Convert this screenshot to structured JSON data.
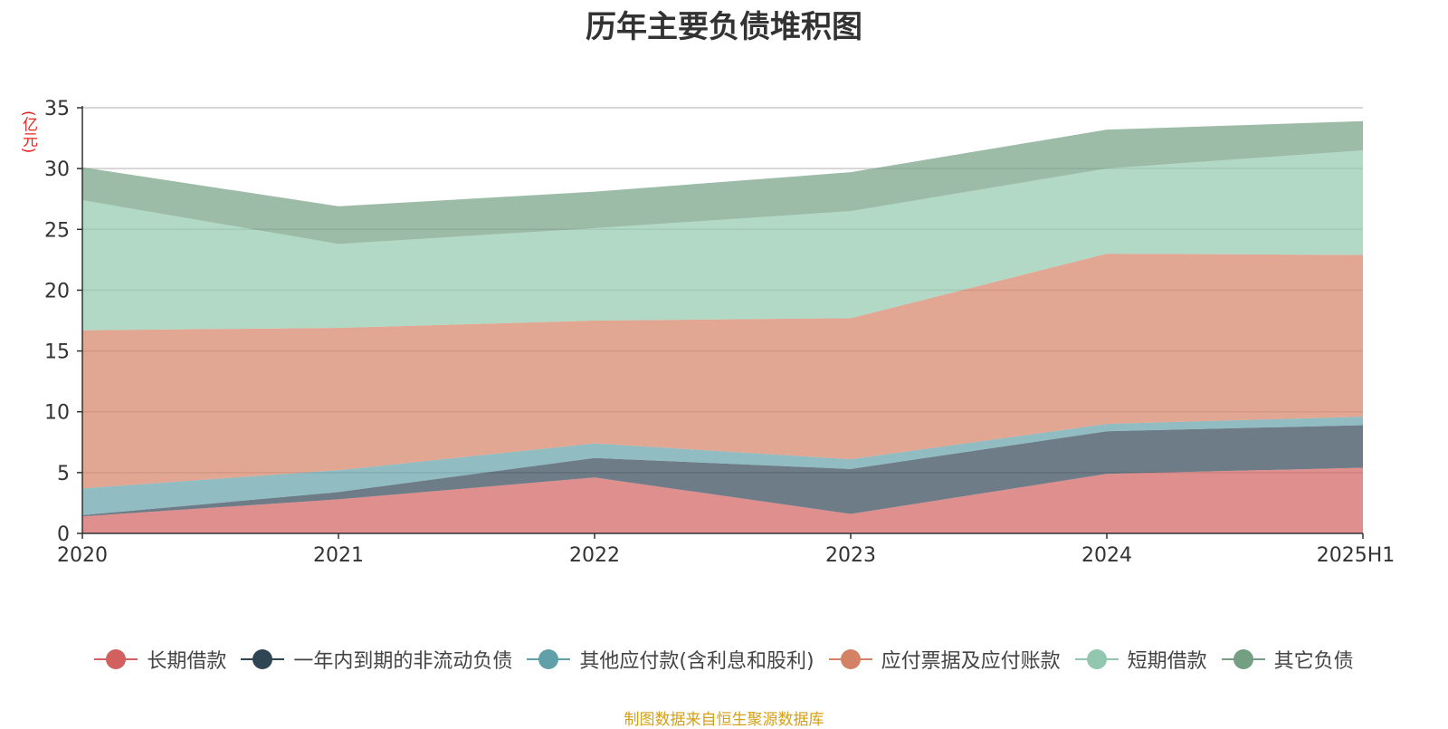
{
  "chart_data": {
    "type": "area",
    "stacked": true,
    "title": "历年主要负债堆积图",
    "y_unit_label": "(亿元)",
    "source_note": "制图数据来自恒生聚源数据库",
    "categories": [
      "2020",
      "2021",
      "2022",
      "2023",
      "2024",
      "2025H1"
    ],
    "ylim": [
      0,
      35
    ],
    "yticks": [
      0,
      5,
      10,
      15,
      20,
      25,
      30,
      35
    ],
    "grid": true,
    "legend_position": "bottom",
    "series": [
      {
        "name": "长期借款",
        "color": "#d1605e",
        "values": [
          1.4,
          2.8,
          4.6,
          1.6,
          4.9,
          5.4
        ]
      },
      {
        "name": "一年内到期的非流动负债",
        "color": "#2f4554",
        "values": [
          0.1,
          0.6,
          1.6,
          3.7,
          3.5,
          3.5
        ]
      },
      {
        "name": "其他应付款(含利息和股利)",
        "color": "#61a0a8",
        "values": [
          2.2,
          1.8,
          1.2,
          0.8,
          0.6,
          0.7
        ]
      },
      {
        "name": "应付票据及应付账款",
        "color": "#d48265",
        "values": [
          13.0,
          11.7,
          10.1,
          11.6,
          14.0,
          13.3
        ]
      },
      {
        "name": "短期借款",
        "color": "#91c7ae",
        "values": [
          10.7,
          6.9,
          7.6,
          8.8,
          7.0,
          8.6
        ]
      },
      {
        "name": "其它负债",
        "color": "#749f83",
        "values": [
          2.7,
          3.1,
          3.0,
          3.2,
          3.2,
          2.4
        ]
      }
    ]
  }
}
